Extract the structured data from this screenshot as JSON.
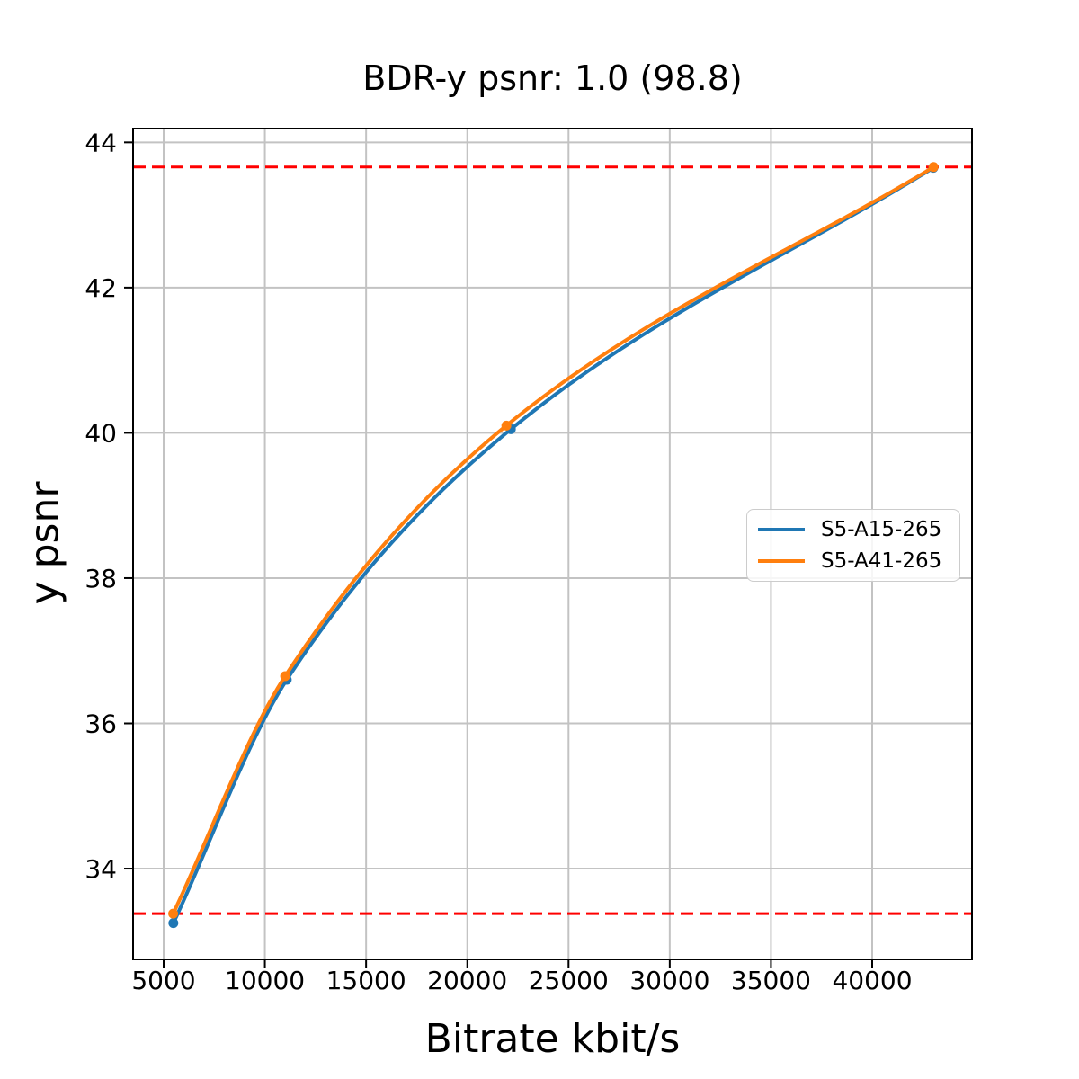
{
  "figure": {
    "title": "BDR-y psnr: 1.0 (98.8)",
    "xlabel": "Bitrate kbit/s",
    "ylabel": "y psnr"
  },
  "chart_data": {
    "type": "line",
    "title": "BDR-y psnr: 1.0 (98.8)",
    "xlabel": "Bitrate kbit/s",
    "ylabel": "y psnr",
    "xlim": [
      3490,
      44930
    ],
    "ylim": [
      32.75,
      44.19
    ],
    "x_ticks": [
      5000,
      10000,
      15000,
      20000,
      25000,
      30000,
      35000,
      40000
    ],
    "y_ticks": [
      34,
      36,
      38,
      40,
      42,
      44
    ],
    "grid": true,
    "grid_color": "#c3c3c3",
    "spine_color": "#000000",
    "legend_position": "center right",
    "series": [
      {
        "name": "S5-A15-265",
        "color": "#1f77b4",
        "marker": "circle",
        "x": [
          5480,
          11080,
          22150,
          43020
        ],
        "y": [
          33.25,
          36.6,
          40.05,
          43.65
        ]
      },
      {
        "name": "S5-A41-265",
        "color": "#ff7f0e",
        "marker": "circle",
        "x": [
          5470,
          11000,
          21930,
          43030
        ],
        "y": [
          33.38,
          36.65,
          40.1,
          43.66
        ]
      }
    ],
    "hlines": [
      {
        "y": 43.66,
        "color": "#ff0000",
        "style": "dashed"
      },
      {
        "y": 33.38,
        "color": "#ff0000",
        "style": "dashed"
      }
    ]
  }
}
